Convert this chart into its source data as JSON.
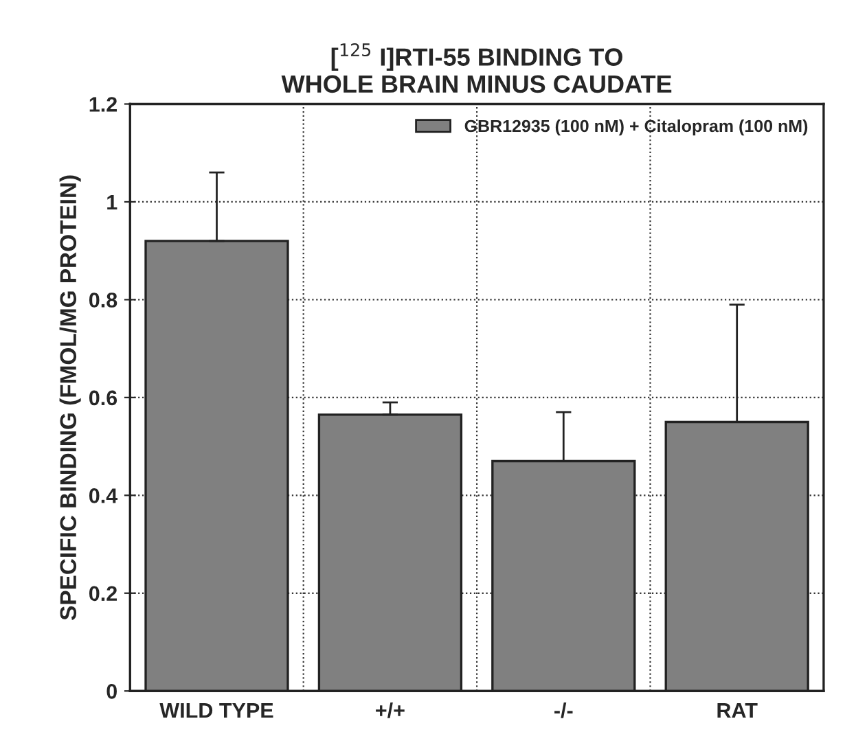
{
  "chart_data": {
    "type": "bar",
    "title": "[$^{125}$ I]RTI-55 BINDING TO\nWHOLE BRAIN MINUS CAUDATE",
    "ylabel": "SPECIFIC BINDING (FMOL/MG PROTEIN)",
    "categories": [
      "WILD TYPE",
      "+/+",
      "-/-",
      "RAT"
    ],
    "series": [
      {
        "name": "GBR12935 (100 nM) + Citalopram (100 nM)",
        "color": "#808080",
        "values": [
          0.92,
          0.565,
          0.47,
          0.55
        ],
        "errors": [
          [
            0.92,
            1.06
          ],
          [
            0.565,
            0.59
          ],
          [
            0.47,
            0.57
          ],
          [
            0.55,
            0.79
          ]
        ]
      }
    ],
    "ylim": [
      0,
      1.2
    ],
    "yticks": [
      0,
      0.2,
      0.4,
      0.6,
      0.8,
      1,
      1.2
    ],
    "grid": true,
    "legend": "top right"
  }
}
